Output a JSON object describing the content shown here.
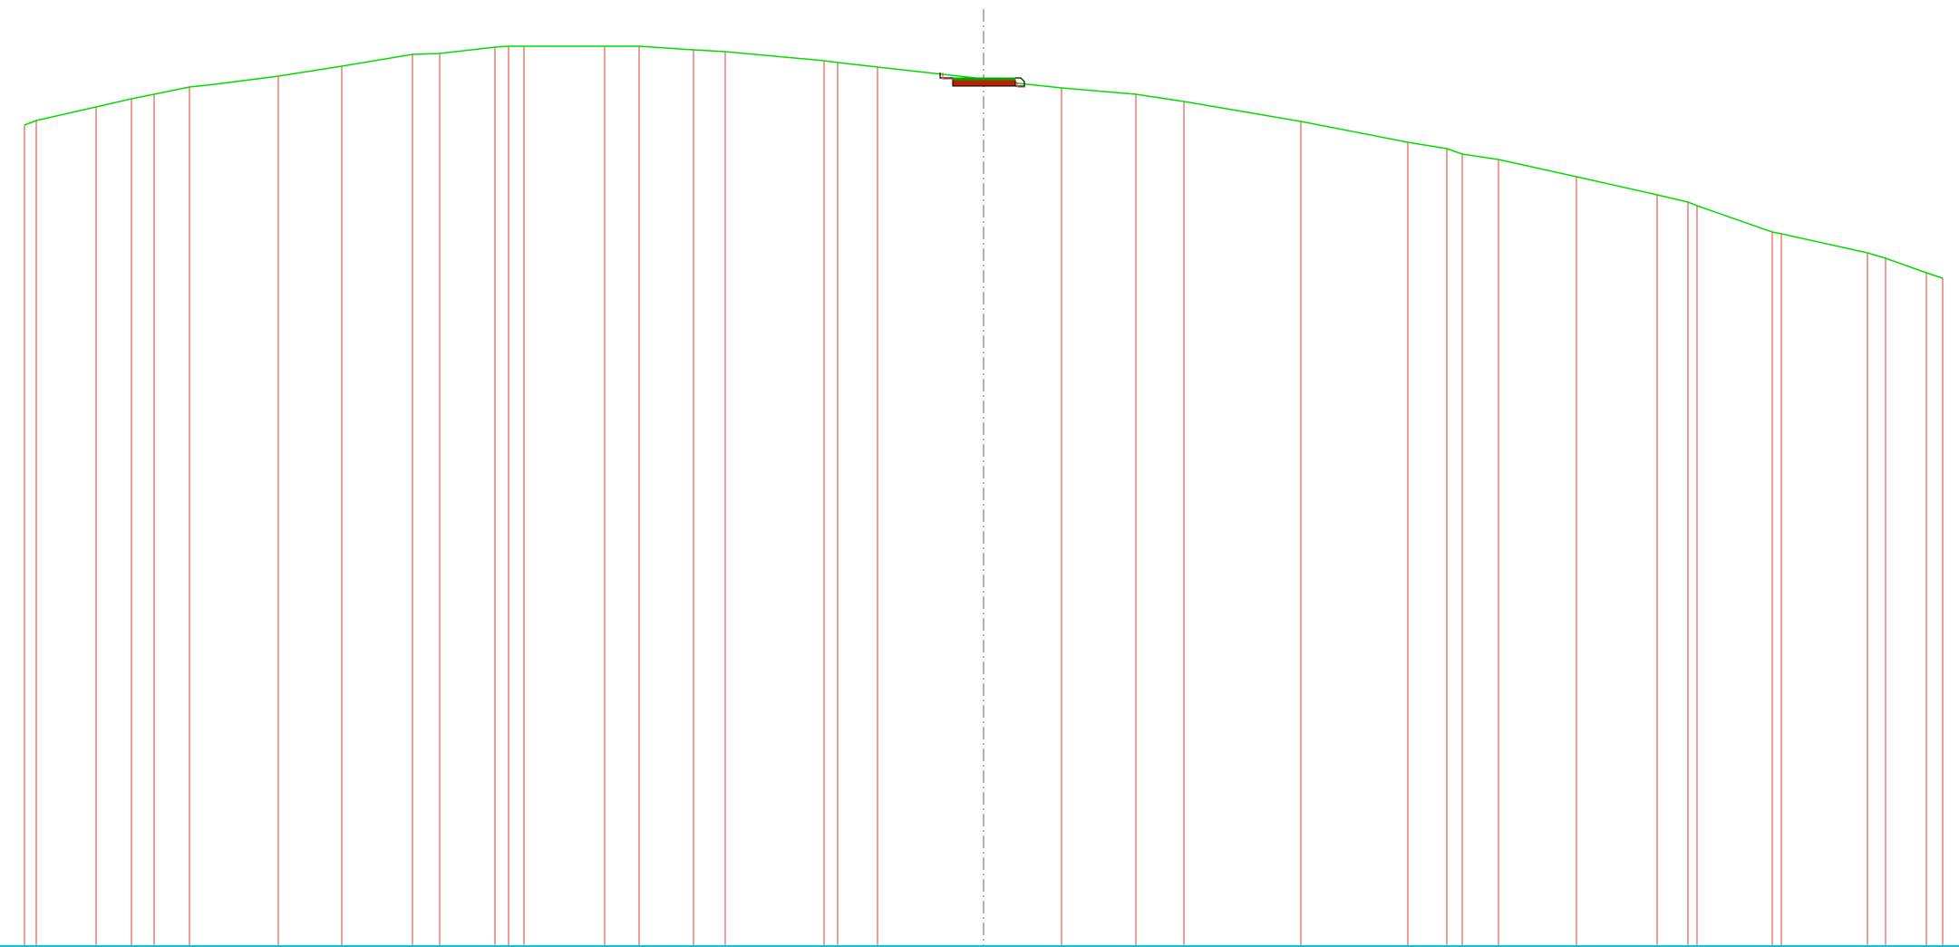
{
  "drawing": {
    "colors": {
      "background": "#ffffff",
      "ground_profile": "#00dd00",
      "section_lines": "#e06050",
      "centerline": "#808080",
      "baseline": "#00c8e0",
      "structure_fill": "#bb2200",
      "structure_outline": "#000000",
      "structure_top": "#00aa00"
    },
    "has_text_labels": false
  }
}
